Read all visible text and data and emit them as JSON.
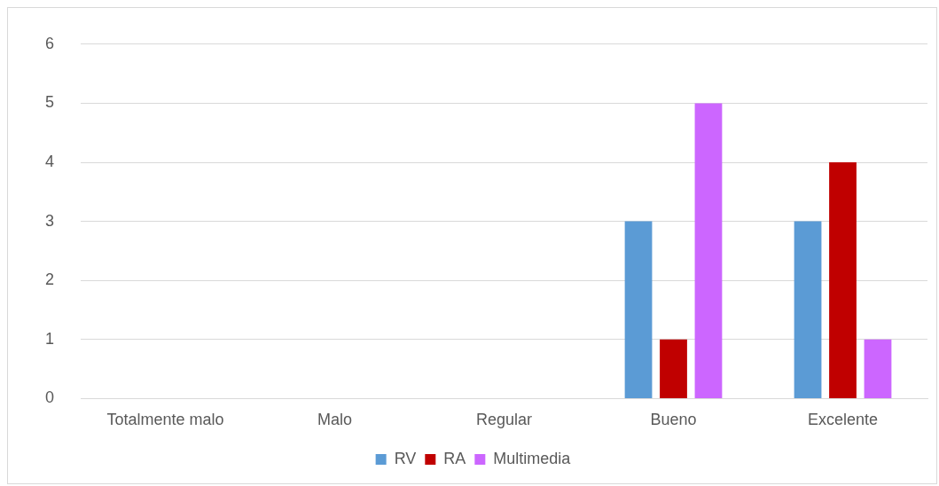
{
  "chart_data": {
    "type": "bar",
    "categories": [
      "Totalmente malo",
      "Malo",
      "Regular",
      "Bueno",
      "Excelente"
    ],
    "series": [
      {
        "name": "RV",
        "color": "#5b9bd5",
        "values": [
          0,
          0,
          0,
          3,
          3
        ]
      },
      {
        "name": "RA",
        "color": "#c00000",
        "values": [
          0,
          0,
          0,
          1,
          4
        ]
      },
      {
        "name": "Multimedia",
        "color": "#cc66ff",
        "values": [
          0,
          0,
          0,
          5,
          1
        ]
      }
    ],
    "ylim": [
      0,
      6
    ],
    "yticks": [
      0,
      1,
      2,
      3,
      4,
      5,
      6
    ],
    "grid": "y",
    "legend": "bottom"
  }
}
